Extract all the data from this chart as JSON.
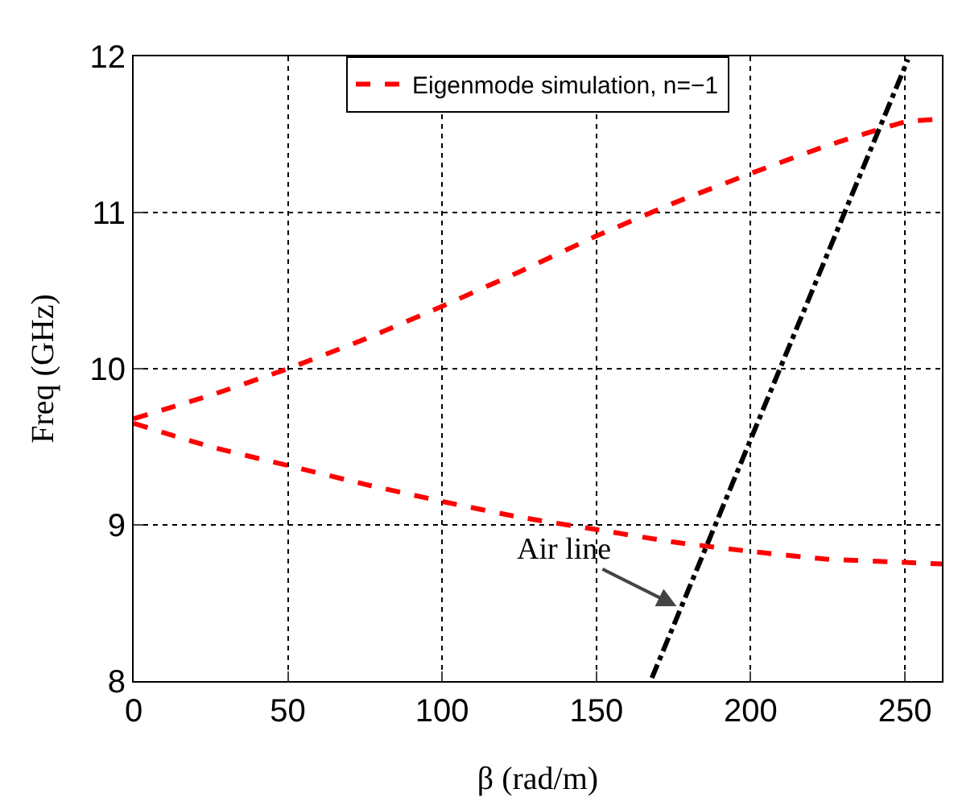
{
  "chart_data": {
    "type": "line",
    "xlabel": "β (rad/m)",
    "ylabel": "Freq (GHz)",
    "xlim": [
      0,
      262
    ],
    "ylim": [
      8,
      12
    ],
    "xticks": [
      0,
      50,
      100,
      150,
      200,
      250
    ],
    "yticks": [
      8,
      9,
      10,
      11,
      12
    ],
    "grid": true,
    "legend": "top",
    "marker": "none",
    "series": [
      {
        "name": "Eigenmode simulation, n=−1",
        "color": "#ff0000",
        "line_style": "dashed",
        "x": [
          0,
          25,
          50,
          75,
          100,
          125,
          150,
          175,
          200,
          225,
          250,
          262
        ],
        "values": [
          9.68,
          9.83,
          10.0,
          10.19,
          10.4,
          10.62,
          10.85,
          11.06,
          11.25,
          11.43,
          11.58,
          11.6
        ]
      },
      {
        "color": "#ff0000",
        "line_style": "dashed",
        "x": [
          0,
          25,
          50,
          75,
          100,
          125,
          150,
          175,
          200,
          225,
          250,
          262
        ],
        "values": [
          9.65,
          9.5,
          9.38,
          9.26,
          9.15,
          9.05,
          8.97,
          8.89,
          8.83,
          8.78,
          8.76,
          8.75
        ]
      },
      {
        "color": "#000000",
        "line_style": "dashdot",
        "x": [
          168,
          251
        ],
        "values": [
          8.02,
          11.98
        ]
      }
    ],
    "annotations": [
      {
        "text": "Air line",
        "x": 176,
        "y": 8.48
      }
    ]
  }
}
